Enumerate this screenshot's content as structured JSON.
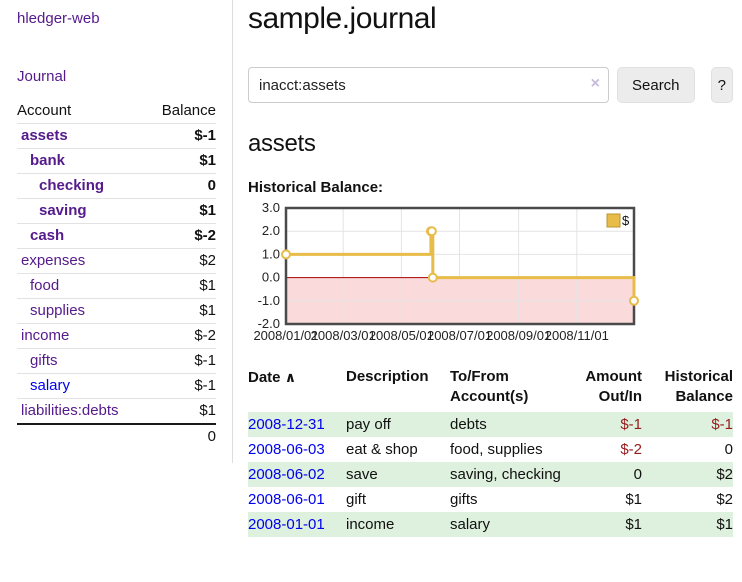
{
  "app": {
    "brand": "hledger-web",
    "nav_journal": "Journal"
  },
  "sidebar": {
    "table": {
      "account_header": "Account",
      "balance_header": "Balance",
      "total": "0"
    },
    "accounts": [
      {
        "name": "assets",
        "balance": "$-1"
      },
      {
        "name": "bank",
        "balance": "$1"
      },
      {
        "name": "checking",
        "balance": "0"
      },
      {
        "name": "saving",
        "balance": "$1"
      },
      {
        "name": "cash",
        "balance": "$-2"
      },
      {
        "name": "expenses",
        "balance": "$2"
      },
      {
        "name": "food",
        "balance": "$1"
      },
      {
        "name": "supplies",
        "balance": "$1"
      },
      {
        "name": "income",
        "balance": "$-2"
      },
      {
        "name": "gifts",
        "balance": "$-1"
      },
      {
        "name": "salary",
        "balance": "$-1"
      },
      {
        "name": "liabilities:debts",
        "balance": "$1"
      }
    ]
  },
  "header": {
    "title": "sample.journal"
  },
  "search": {
    "value": "inacct:assets",
    "clear_icon": "×",
    "button_label": "Search",
    "help_label": "?"
  },
  "account_page": {
    "heading": "assets",
    "chart_label": "Historical Balance:"
  },
  "register": {
    "sort_icon": "∧",
    "columns": {
      "date_l1": "Date",
      "desc_l1": "Description",
      "tofrom_l1": "To/From",
      "tofrom_l2": "Account(s)",
      "amount_l1": "Amount",
      "amount_l2": "Out/In",
      "hist_l1": "Historical",
      "hist_l2": "Balance"
    },
    "rows": [
      {
        "date": "2008-12-31",
        "description": "pay off",
        "accounts": "debts",
        "amount": "$-1",
        "balance": "$-1"
      },
      {
        "date": "2008-06-03",
        "description": "eat & shop",
        "accounts": "food, supplies",
        "amount": "$-2",
        "balance": "0"
      },
      {
        "date": "2008-06-02",
        "description": "save",
        "accounts": "saving, checking",
        "amount": "0",
        "balance": "$2"
      },
      {
        "date": "2008-06-01",
        "description": "gift",
        "accounts": "gifts",
        "amount": "$1",
        "balance": "$2"
      },
      {
        "date": "2008-01-01",
        "description": "income",
        "accounts": "salary",
        "amount": "$1",
        "balance": "$1"
      }
    ]
  },
  "colors": {
    "link_purple": "#551A8B",
    "link_blue": "#0000EE",
    "negative_strong": "#971b1b",
    "negative_soft": "#c37d7d",
    "row_green": "#def0de",
    "chart_line": "#e8bc48"
  },
  "chart_data": {
    "type": "line",
    "title": "Historical Balance:",
    "step": true,
    "x_range": [
      "2008-01-01",
      "2008-12-31"
    ],
    "ylim": [
      -2,
      3
    ],
    "y_ticks": [
      3,
      2,
      1,
      0,
      -1,
      -2
    ],
    "x_tick_labels": [
      "2008/01/01",
      "2008/03/01",
      "2008/05/01",
      "2008/07/01",
      "2008/09/01",
      "2008/11/01"
    ],
    "series": [
      {
        "name": "$",
        "color": "#e8bc48",
        "points": [
          [
            "2008-01-01",
            1
          ],
          [
            "2008-06-01",
            2
          ],
          [
            "2008-06-02",
            2
          ],
          [
            "2008-06-03",
            0
          ],
          [
            "2008-12-31",
            -1
          ]
        ]
      }
    ],
    "negative_fill": "#fadada",
    "zero_line_color": "#a40000",
    "grid": true,
    "legend": {
      "label": "$",
      "swatch": "#e8bc48",
      "position": "top-right"
    }
  }
}
